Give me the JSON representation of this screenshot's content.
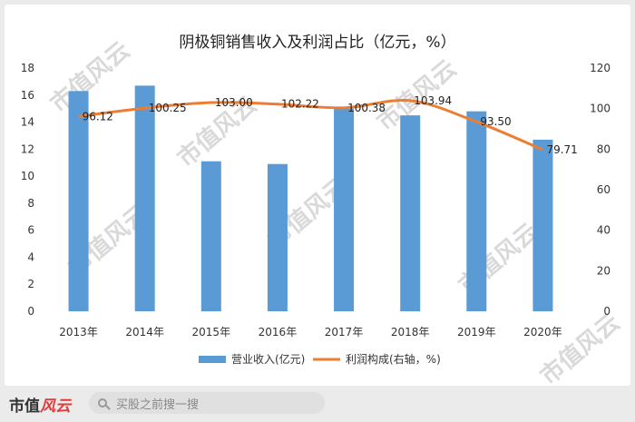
{
  "chart_data": {
    "type": "bar+line",
    "title": "阴极铜销售收入及利润占比（亿元，%）",
    "categories": [
      "2013年",
      "2014年",
      "2015年",
      "2016年",
      "2017年",
      "2018年",
      "2019年",
      "2020年"
    ],
    "series": [
      {
        "name": "营业收入(亿元)",
        "type": "bar",
        "axis": "left",
        "color": "#5b9bd5",
        "values": [
          16.3,
          16.7,
          11.1,
          10.9,
          15.0,
          14.5,
          14.8,
          12.7
        ]
      },
      {
        "name": "利润构成(右轴，%)",
        "type": "line",
        "axis": "right",
        "color": "#ed7d31",
        "values": [
          96.12,
          100.25,
          103.0,
          102.22,
          100.38,
          103.94,
          93.5,
          79.71
        ],
        "labels": [
          "96.12",
          "100.25",
          "103.00",
          "102.22",
          "100.38",
          "103.94",
          "93.50",
          "79.71"
        ]
      }
    ],
    "ylim_left": [
      0,
      18
    ],
    "yticks_left": [
      "0",
      "2",
      "4",
      "6",
      "8",
      "10",
      "12",
      "14",
      "16",
      "18"
    ],
    "ylim_right": [
      0,
      120
    ],
    "yticks_right": [
      "0",
      "20",
      "40",
      "60",
      "80",
      "100",
      "120"
    ],
    "grid": false,
    "legend_position": "bottom"
  },
  "watermark": {
    "text": "市值风云"
  },
  "footer": {
    "brand_main": "市值",
    "brand_accent": "风云",
    "search_placeholder": "买股之前搜一搜",
    "search_icon": "search-icon"
  }
}
